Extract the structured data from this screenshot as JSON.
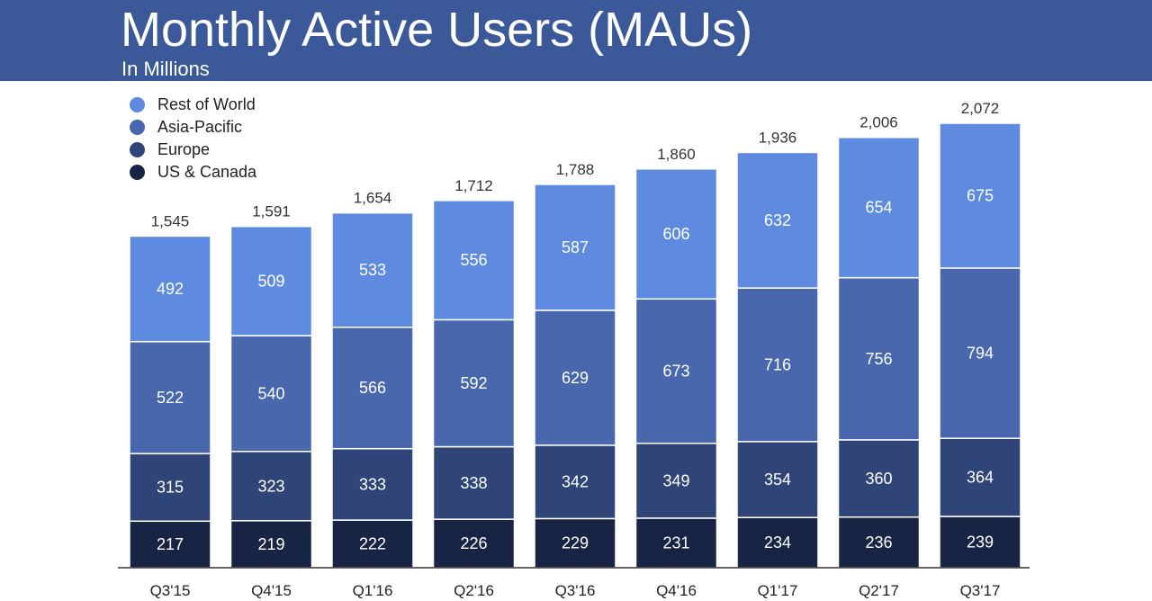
{
  "header": {
    "title": "Monthly Active Users (MAUs)",
    "subtitle": "In Millions"
  },
  "colors": {
    "header_bg": "#3b5998",
    "rest_of_world": "#5e8bdf",
    "asia_pacific": "#4867ad",
    "europe": "#2f4578",
    "us_canada": "#172444",
    "axis": "#333333"
  },
  "legend": [
    {
      "name": "Rest of World",
      "color": "#5e8bdf"
    },
    {
      "name": "Asia-Pacific",
      "color": "#4867ad"
    },
    {
      "name": "Europe",
      "color": "#2f4578"
    },
    {
      "name": "US & Canada",
      "color": "#172444"
    }
  ],
  "chart_data": {
    "type": "bar",
    "stacked": true,
    "title": "Monthly Active Users (MAUs)",
    "subtitle": "In Millions",
    "categories": [
      "Q3'15",
      "Q4'15",
      "Q1'16",
      "Q2'16",
      "Q3'16",
      "Q4'16",
      "Q1'17",
      "Q2'17",
      "Q3'17"
    ],
    "series": [
      {
        "name": "US & Canada",
        "color": "#172444",
        "values": [
          217,
          219,
          222,
          226,
          229,
          231,
          234,
          236,
          239
        ]
      },
      {
        "name": "Europe",
        "color": "#2f4578",
        "values": [
          315,
          323,
          333,
          338,
          342,
          349,
          354,
          360,
          364
        ]
      },
      {
        "name": "Asia-Pacific",
        "color": "#4867ad",
        "values": [
          522,
          540,
          566,
          592,
          629,
          673,
          716,
          756,
          794
        ]
      },
      {
        "name": "Rest of World",
        "color": "#5e8bdf",
        "values": [
          492,
          509,
          533,
          556,
          587,
          606,
          632,
          654,
          675
        ]
      }
    ],
    "totals": [
      "1,545",
      "1,591",
      "1,654",
      "1,712",
      "1,788",
      "1,860",
      "1,936",
      "2,006",
      "2,072"
    ],
    "ylim": [
      0,
      2072
    ],
    "grid": false,
    "legend_position": "top-left"
  }
}
